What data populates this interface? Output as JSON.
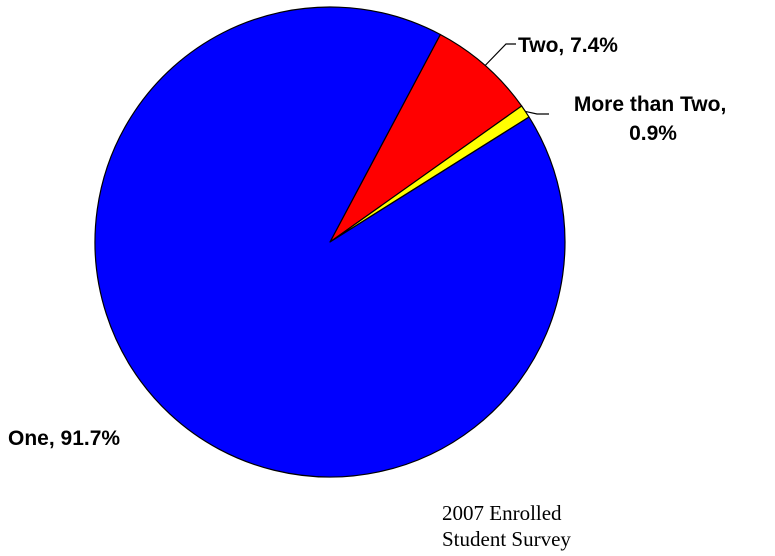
{
  "chart_data": {
    "type": "pie",
    "slices": [
      {
        "category": "Two",
        "label": "Two, 7.4%",
        "value": 7.4,
        "color": "#FF0000"
      },
      {
        "category": "More than Two",
        "label_lines": [
          "More than Two,",
          "0.9%"
        ],
        "value": 0.9,
        "color": "#FFFF00"
      },
      {
        "category": "One",
        "label": "One, 91.7%",
        "value": 91.7,
        "color": "#0000FF"
      }
    ],
    "start_angle_deg": -62,
    "direction": "clockwise",
    "outline_color": "#000000"
  },
  "note": {
    "line1": "2007 Enrolled",
    "line2": "Student Survey"
  }
}
